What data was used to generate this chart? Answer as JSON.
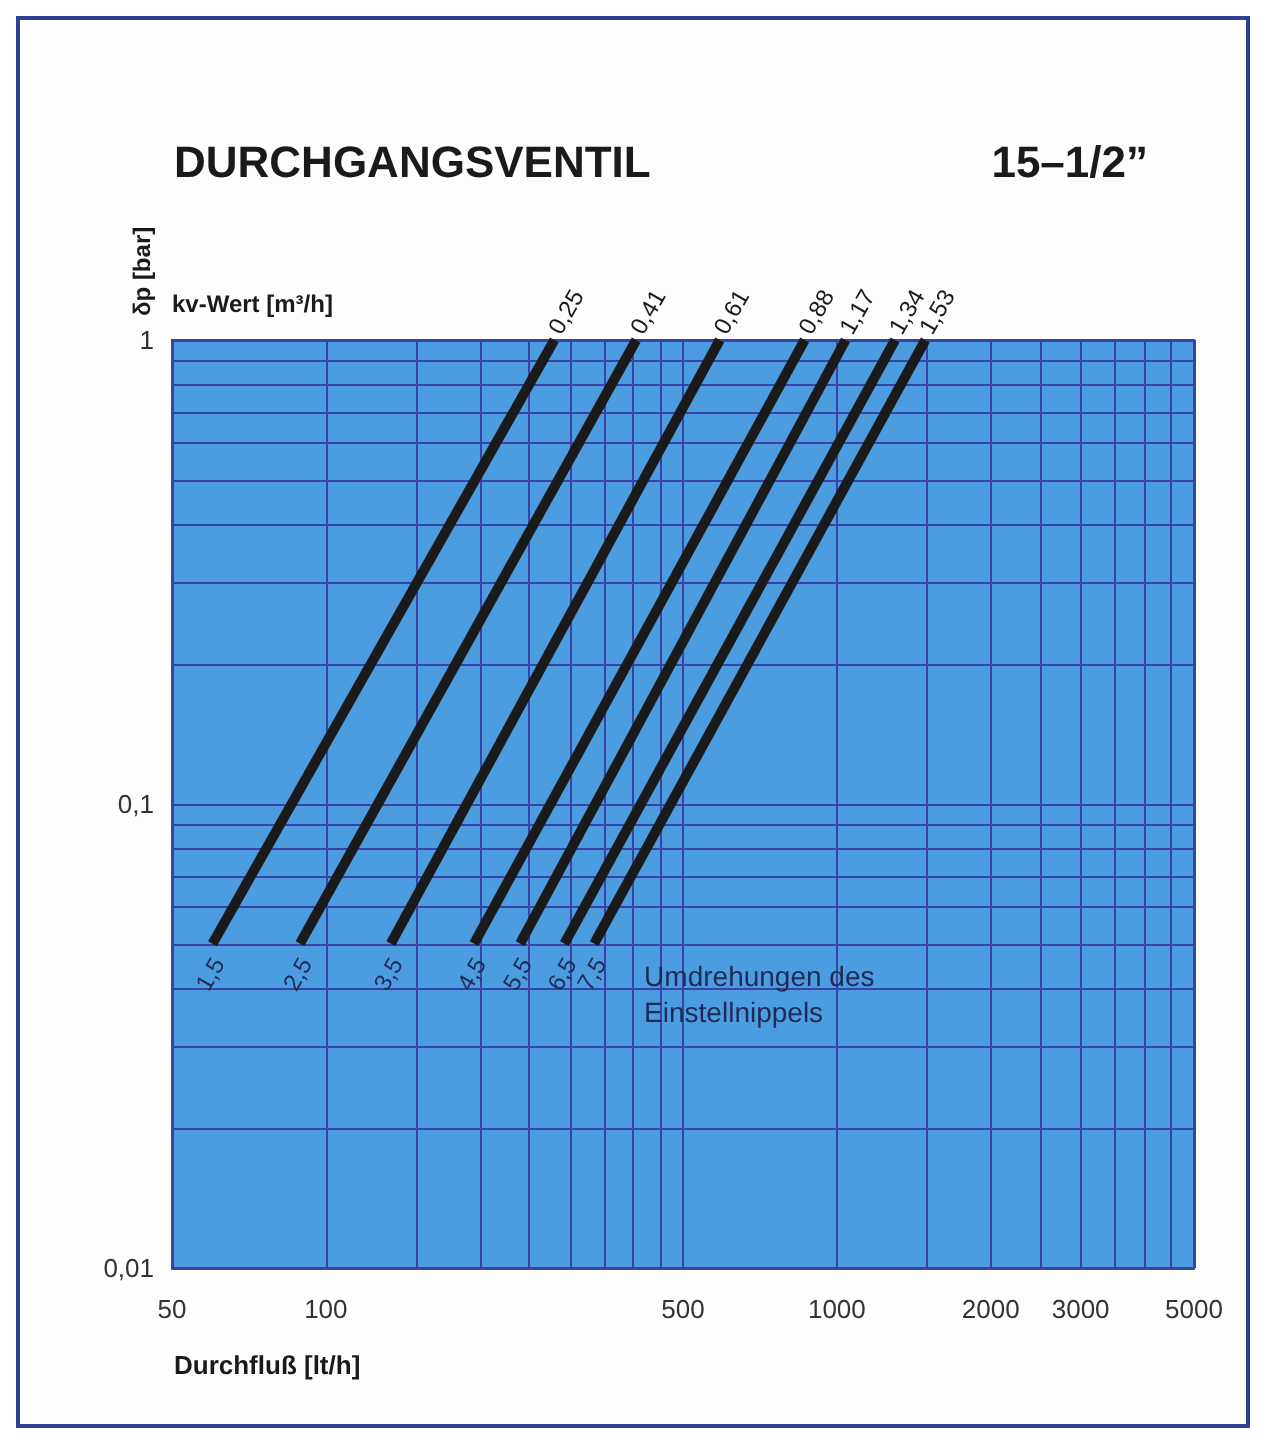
{
  "chart_data": {
    "type": "line",
    "title": "DURCHGANGSVENTIL",
    "subtitle": "15–1/2”",
    "xlabel": "Durchfluß [lt/h]",
    "ylabel": "δp [bar]",
    "legend_title": "kv-Wert [m³/h]",
    "log": "xy",
    "grid": true,
    "xlim": [
      50,
      5000
    ],
    "ylim": [
      0.01,
      1
    ],
    "xticks": [
      50,
      100,
      {
        "value": 150,
        "label": null
      },
      {
        "value": 200,
        "label": null
      },
      {
        "value": 250,
        "label": null
      },
      {
        "value": 300,
        "label": null
      },
      {
        "value": 350,
        "label": null
      },
      {
        "value": 400,
        "label": null
      },
      {
        "value": 450,
        "label": null
      },
      500,
      1000,
      {
        "value": 1500,
        "label": null
      },
      2000,
      {
        "value": 2500,
        "label": null
      },
      3000,
      {
        "value": 3500,
        "label": null
      },
      {
        "value": 4000,
        "label": null
      },
      {
        "value": 4500,
        "label": null
      },
      5000
    ],
    "yticks": [
      {
        "value": 0.01,
        "label": "0,01"
      },
      {
        "value": 0.02,
        "label": null
      },
      {
        "value": 0.03,
        "label": null
      },
      {
        "value": 0.04,
        "label": null
      },
      {
        "value": 0.05,
        "label": null
      },
      {
        "value": 0.06,
        "label": null
      },
      {
        "value": 0.07,
        "label": null
      },
      {
        "value": 0.08,
        "label": null
      },
      {
        "value": 0.09,
        "label": null
      },
      {
        "value": 0.1,
        "label": "0,1"
      },
      {
        "value": 0.2,
        "label": null
      },
      {
        "value": 0.3,
        "label": null
      },
      {
        "value": 0.4,
        "label": null
      },
      {
        "value": 0.5,
        "label": null
      },
      {
        "value": 0.6,
        "label": null
      },
      {
        "value": 0.7,
        "label": null
      },
      {
        "value": 0.8,
        "label": null
      },
      {
        "value": 0.9,
        "label": null
      },
      1
    ],
    "series": [
      {
        "name": "0,25",
        "color": "#1a1a1a",
        "x": [
          60,
          280
        ],
        "values": [
          0.05,
          1
        ]
      },
      {
        "name": "0,41",
        "color": "#1a1a1a",
        "x": [
          89,
          405
        ],
        "values": [
          0.05,
          1
        ]
      },
      {
        "name": "0,61",
        "color": "#1a1a1a",
        "x": [
          134,
          590
        ],
        "values": [
          0.05,
          1
        ]
      },
      {
        "name": "0,88",
        "color": "#1a1a1a",
        "x": [
          195,
          865
        ],
        "values": [
          0.05,
          1
        ]
      },
      {
        "name": "1,17",
        "color": "#1a1a1a",
        "x": [
          240,
          1040
        ],
        "values": [
          0.05,
          1
        ]
      },
      {
        "name": "1,34",
        "color": "#1a1a1a",
        "x": [
          293,
          1300
        ],
        "values": [
          0.05,
          1
        ]
      },
      {
        "name": "1,53",
        "color": "#1a1a1a",
        "x": [
          335,
          1490
        ],
        "values": [
          0.05,
          1
        ]
      }
    ],
    "annotations": [
      {
        "text": "1,5",
        "x": 60,
        "y": 0.05
      },
      {
        "text": "2,5",
        "x": 89,
        "y": 0.05
      },
      {
        "text": "3,5",
        "x": 134,
        "y": 0.05
      },
      {
        "text": "4,5",
        "x": 195,
        "y": 0.05
      },
      {
        "text": "5,5",
        "x": 240,
        "y": 0.05
      },
      {
        "text": "6,5",
        "x": 293,
        "y": 0.05
      },
      {
        "text": "7,5",
        "x": 335,
        "y": 0.05
      },
      "Umdrehungen des Einstellnippels"
    ]
  }
}
